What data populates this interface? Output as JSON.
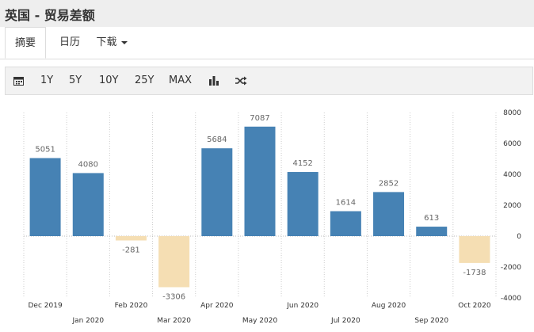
{
  "page": {
    "title": "英国 - 贸易差额"
  },
  "tabs": [
    {
      "label": "摘要",
      "active": true
    },
    {
      "label": "日历",
      "active": false
    },
    {
      "label": "下载",
      "active": false,
      "has_dropdown": true
    }
  ],
  "toolbar": {
    "calendar_icon": "calendar-icon",
    "ranges": [
      "1Y",
      "5Y",
      "10Y",
      "25Y",
      "MAX"
    ],
    "bar_chart_icon": "bar-chart-icon",
    "shuffle_icon": "shuffle-icon"
  },
  "chart_data": {
    "type": "bar",
    "categories": [
      "Dec 2019",
      "Jan 2020",
      "Feb 2020",
      "Mar 2020",
      "Apr 2020",
      "May 2020",
      "Jun 2020",
      "Jul 2020",
      "Aug 2020",
      "Sep 2020",
      "Oct 2020"
    ],
    "values": [
      5051,
      4080,
      -281,
      -3306,
      5684,
      7087,
      4152,
      1614,
      2852,
      613,
      -1738
    ],
    "ylim": [
      -4000,
      8000
    ],
    "yticks": [
      8000,
      6000,
      4000,
      2000,
      0,
      -2000,
      -4000
    ],
    "positive_color": "#4682b4",
    "negative_color": "#f5deb3",
    "grid": true,
    "grid_style": "vertical dotted",
    "axis_position": "right"
  }
}
